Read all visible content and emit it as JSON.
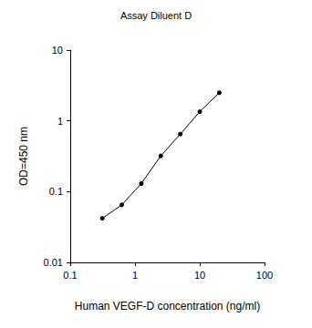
{
  "chart_data": {
    "type": "line",
    "title": "Assay Diluent D",
    "x_label": "Human VEGF-D concentration (ng/ml)",
    "y_label": "OD=450 nm",
    "x": [
      0.3125,
      0.625,
      1.25,
      2.5,
      5,
      10,
      20
    ],
    "values": [
      0.042,
      0.065,
      0.13,
      0.32,
      0.65,
      1.35,
      2.5
    ],
    "color": "#000000",
    "marker": "circle",
    "line_style": "solid",
    "log": true,
    "grid": false,
    "xlim": [
      0.1,
      100
    ],
    "xticks": [
      0.1,
      1,
      10,
      100
    ],
    "ylim": [
      0.01,
      10
    ],
    "yticks": [
      0.01,
      0.1,
      1,
      10
    ]
  }
}
